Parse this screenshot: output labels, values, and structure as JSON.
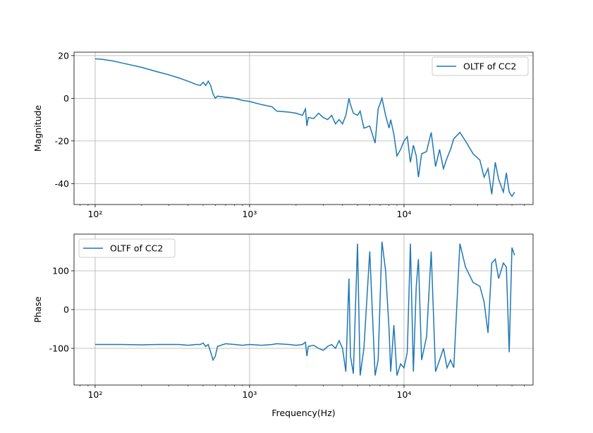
{
  "chart_data": [
    {
      "type": "line",
      "ylabel": "Magnitude",
      "xlog": true,
      "grid": true,
      "legend": "upper right",
      "xlim": [
        73,
        68500
      ],
      "ylim": [
        -49.8,
        21.6
      ],
      "xticks": [
        {
          "value": 100,
          "label": "10²"
        },
        {
          "value": 1000,
          "label": "10³"
        },
        {
          "value": 10000,
          "label": "10⁴"
        }
      ],
      "yticks": [
        20,
        0,
        -20,
        -40
      ],
      "x": [
        100,
        110,
        130,
        150,
        200,
        250,
        300,
        350,
        400,
        450,
        480,
        500,
        520,
        540,
        560,
        580,
        600,
        620,
        700,
        800,
        900,
        1000,
        1200,
        1400,
        1500,
        1800,
        2000,
        2200,
        2300,
        2350,
        2400,
        2600,
        2800,
        3000,
        3200,
        3400,
        3600,
        3800,
        4000,
        4200,
        4400,
        4500,
        4700,
        5000,
        5200,
        5500,
        6000,
        6500,
        6800,
        7200,
        7600,
        8000,
        8200,
        8600,
        9000,
        9500,
        10000,
        10500,
        11000,
        11500,
        12000,
        12400,
        13000,
        14000,
        15000,
        16000,
        17000,
        18000,
        19000,
        20000,
        21000,
        23000,
        25000,
        28000,
        31000,
        33000,
        35000,
        37000,
        39000,
        41000,
        44000,
        46000,
        48000,
        50000,
        52000
      ],
      "series": [
        {
          "name": "OLTF of CC2",
          "color": "#1f77b4",
          "values": [
            18.5,
            18.3,
            17.5,
            16.5,
            14.5,
            12.5,
            11,
            9.5,
            8,
            6.5,
            6,
            7.5,
            6,
            8,
            6,
            2,
            0,
            1,
            0.5,
            0,
            -1,
            -1.5,
            -3,
            -4,
            -6,
            -6.5,
            -7,
            -8,
            -5,
            -13,
            -9,
            -9.5,
            -7,
            -9,
            -10,
            -8,
            -12,
            -10,
            -12,
            -8,
            0,
            -3,
            -7,
            -8,
            -6,
            -14,
            -13,
            -21,
            -5,
            0,
            -8,
            -14,
            -10,
            -17,
            -27,
            -24,
            -20,
            -18,
            -30,
            -22,
            -27,
            -37,
            -26,
            -25,
            -16,
            -32,
            -24,
            -33,
            -28,
            -24,
            -19,
            -16,
            -20,
            -26,
            -29,
            -37,
            -33,
            -45,
            -30,
            -38,
            -44,
            -35,
            -44,
            -46,
            -44
          ]
        }
      ]
    },
    {
      "type": "line",
      "ylabel": "Phase",
      "xlabel": "Frequency(Hz)",
      "xlog": true,
      "grid": true,
      "legend": "upper left",
      "xlim": [
        73,
        68500
      ],
      "ylim": [
        -194.5,
        194.5
      ],
      "xticks": [
        {
          "value": 100,
          "label": "10²"
        },
        {
          "value": 1000,
          "label": "10³"
        },
        {
          "value": 10000,
          "label": "10⁴"
        }
      ],
      "yticks": [
        100,
        0,
        -100
      ],
      "x": [
        100,
        110,
        130,
        150,
        200,
        250,
        300,
        350,
        400,
        450,
        480,
        500,
        520,
        540,
        560,
        580,
        600,
        620,
        700,
        800,
        900,
        1000,
        1200,
        1400,
        1500,
        1800,
        2000,
        2200,
        2300,
        2350,
        2400,
        2600,
        2800,
        3000,
        3200,
        3400,
        3600,
        3800,
        4000,
        4200,
        4400,
        4500,
        4700,
        5000,
        5200,
        5500,
        6000,
        6500,
        6800,
        7200,
        7600,
        8000,
        8200,
        8600,
        9000,
        9500,
        10000,
        10500,
        11000,
        11500,
        12000,
        12400,
        13000,
        14000,
        15000,
        16000,
        17000,
        18000,
        19000,
        20000,
        21000,
        23000,
        25000,
        28000,
        31000,
        33000,
        35000,
        37000,
        39000,
        41000,
        44000,
        46000,
        48000,
        50000,
        52000
      ],
      "series": [
        {
          "name": "OLTF of CC2",
          "color": "#1f77b4",
          "values": [
            -90,
            -90,
            -90,
            -90,
            -91,
            -90,
            -90,
            -90,
            -92,
            -90,
            -90,
            -86,
            -95,
            -90,
            -110,
            -130,
            -120,
            -95,
            -88,
            -90,
            -92,
            -90,
            -92,
            -90,
            -88,
            -90,
            -92,
            -90,
            -84,
            -120,
            -95,
            -92,
            -100,
            -105,
            -95,
            -90,
            -100,
            -80,
            -100,
            -160,
            80,
            -120,
            -165,
            170,
            -170,
            -100,
            150,
            -170,
            -130,
            175,
            100,
            -50,
            -160,
            -40,
            -170,
            -140,
            -150,
            -110,
            170,
            -160,
            60,
            130,
            -130,
            -70,
            150,
            -160,
            -130,
            -100,
            -150,
            -130,
            -150,
            170,
            110,
            70,
            60,
            20,
            -60,
            120,
            130,
            80,
            120,
            110,
            -110,
            160,
            140
          ]
        }
      ]
    }
  ]
}
